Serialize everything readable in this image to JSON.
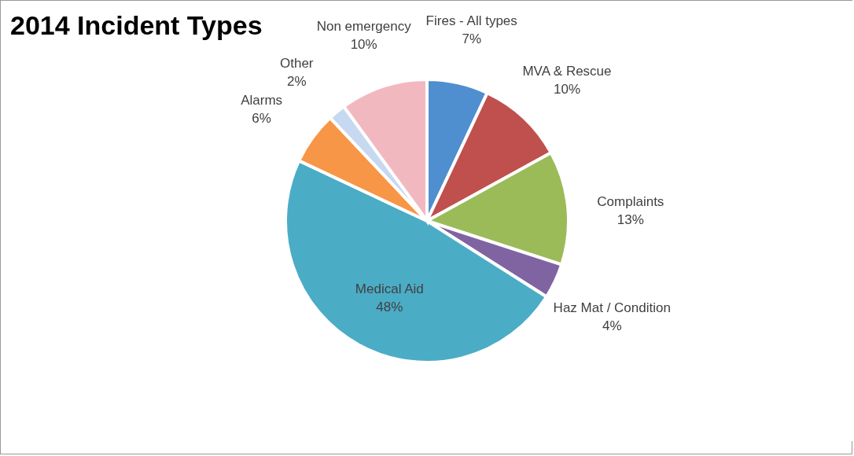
{
  "chart_data": {
    "type": "pie",
    "title": "2014 Incident Types",
    "categories": [
      "Fires - All types",
      "MVA & Rescue",
      "Complaints",
      "Haz Mat / Condition",
      "Medical Aid",
      "Alarms",
      "Other",
      "Non emergency"
    ],
    "values": [
      7,
      10,
      13,
      4,
      48,
      6,
      2,
      10
    ],
    "value_labels": [
      "7%",
      "10%",
      "13%",
      "4%",
      "48%",
      "6%",
      "2%",
      "10%"
    ],
    "colors": [
      "#4f8fcf",
      "#c0504d",
      "#9bbb59",
      "#8064a2",
      "#4bacc6",
      "#f79646",
      "#c6d9f1",
      "#f2b8c0"
    ],
    "legend": false
  }
}
